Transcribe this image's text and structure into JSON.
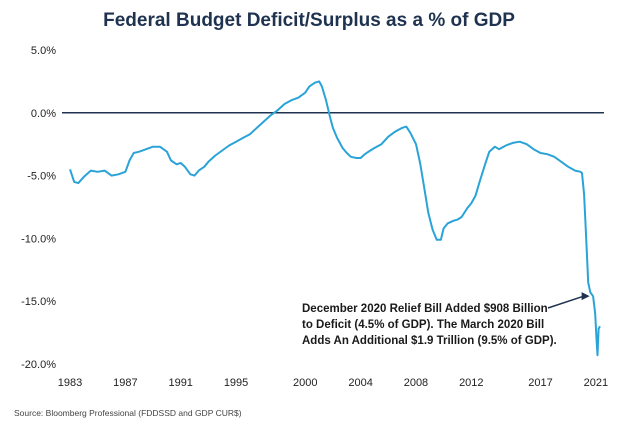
{
  "title": "Federal Budget Deficit/Surplus as a % of GDP",
  "source": "Source: Bloomberg Professional (FDDSSD and GDP CUR$)",
  "annotation": {
    "line1": "December 2020 Relief Bill Added $908 Billion",
    "line2": "to Deficit (4.5% of GDP).  The March 2020 Bill",
    "line3": "Adds An Additional $1.9 Trillion (9.5% of GDP)."
  },
  "colors": {
    "line": "#2aa3d8",
    "zero_line": "#1f3350",
    "text": "#1a1a1a"
  },
  "chart_data": {
    "type": "line",
    "title": "Federal Budget Deficit/Surplus as a % of GDP",
    "xlabel": "",
    "ylabel": "",
    "grid": false,
    "ylim": [
      -20,
      5
    ],
    "xlim": [
      1983,
      2021.3
    ],
    "y_ticks": [
      5,
      0,
      -5,
      -10,
      -15,
      -20
    ],
    "y_tick_labels": [
      "5.0%",
      "0.0%",
      "-5.0%",
      "-10.0%",
      "-15.0%",
      "-20.0%"
    ],
    "x_ticks": [
      1983,
      1987,
      1991,
      1995,
      2000,
      2004,
      2008,
      2012,
      2017,
      2021
    ],
    "x_tick_labels": [
      "1983",
      "1987",
      "1991",
      "1995",
      "2000",
      "2004",
      "2008",
      "2012",
      "2017",
      "2021"
    ],
    "series": [
      {
        "points": [
          [
            1983.0,
            -4.5
          ],
          [
            1983.3,
            -5.5
          ],
          [
            1983.6,
            -5.6
          ],
          [
            1984.0,
            -5.1
          ],
          [
            1984.5,
            -4.6
          ],
          [
            1985.0,
            -4.7
          ],
          [
            1985.5,
            -4.6
          ],
          [
            1986.0,
            -5.0
          ],
          [
            1986.5,
            -4.9
          ],
          [
            1987.0,
            -4.7
          ],
          [
            1987.3,
            -3.8
          ],
          [
            1987.6,
            -3.2
          ],
          [
            1988.0,
            -3.1
          ],
          [
            1988.5,
            -2.9
          ],
          [
            1989.0,
            -2.7
          ],
          [
            1989.5,
            -2.7
          ],
          [
            1990.0,
            -3.1
          ],
          [
            1990.3,
            -3.8
          ],
          [
            1990.7,
            -4.1
          ],
          [
            1991.0,
            -4.0
          ],
          [
            1991.3,
            -4.3
          ],
          [
            1991.7,
            -4.9
          ],
          [
            1992.0,
            -5.0
          ],
          [
            1992.3,
            -4.6
          ],
          [
            1992.7,
            -4.3
          ],
          [
            1993.0,
            -3.9
          ],
          [
            1993.5,
            -3.4
          ],
          [
            1994.0,
            -3.0
          ],
          [
            1994.5,
            -2.6
          ],
          [
            1995.0,
            -2.3
          ],
          [
            1995.5,
            -2.0
          ],
          [
            1996.0,
            -1.7
          ],
          [
            1996.5,
            -1.2
          ],
          [
            1997.0,
            -0.7
          ],
          [
            1997.5,
            -0.2
          ],
          [
            1998.0,
            0.2
          ],
          [
            1998.5,
            0.7
          ],
          [
            1999.0,
            1.0
          ],
          [
            1999.5,
            1.2
          ],
          [
            2000.0,
            1.6
          ],
          [
            2000.3,
            2.1
          ],
          [
            2000.7,
            2.4
          ],
          [
            2001.0,
            2.5
          ],
          [
            2001.2,
            2.1
          ],
          [
            2001.5,
            1.0
          ],
          [
            2001.8,
            -0.4
          ],
          [
            2002.0,
            -1.2
          ],
          [
            2002.3,
            -2.0
          ],
          [
            2002.7,
            -2.8
          ],
          [
            2003.0,
            -3.2
          ],
          [
            2003.3,
            -3.5
          ],
          [
            2003.7,
            -3.6
          ],
          [
            2004.0,
            -3.6
          ],
          [
            2004.3,
            -3.3
          ],
          [
            2004.7,
            -3.0
          ],
          [
            2005.0,
            -2.8
          ],
          [
            2005.5,
            -2.5
          ],
          [
            2006.0,
            -1.9
          ],
          [
            2006.5,
            -1.5
          ],
          [
            2007.0,
            -1.2
          ],
          [
            2007.3,
            -1.1
          ],
          [
            2007.6,
            -1.6
          ],
          [
            2008.0,
            -2.5
          ],
          [
            2008.3,
            -4.0
          ],
          [
            2008.6,
            -6.0
          ],
          [
            2008.9,
            -8.0
          ],
          [
            2009.2,
            -9.3
          ],
          [
            2009.5,
            -10.1
          ],
          [
            2009.8,
            -10.1
          ],
          [
            2010.0,
            -9.2
          ],
          [
            2010.3,
            -8.8
          ],
          [
            2010.7,
            -8.6
          ],
          [
            2011.0,
            -8.5
          ],
          [
            2011.3,
            -8.3
          ],
          [
            2011.7,
            -7.6
          ],
          [
            2012.0,
            -7.2
          ],
          [
            2012.3,
            -6.6
          ],
          [
            2012.6,
            -5.5
          ],
          [
            2013.0,
            -4.1
          ],
          [
            2013.3,
            -3.1
          ],
          [
            2013.7,
            -2.7
          ],
          [
            2014.0,
            -2.9
          ],
          [
            2014.5,
            -2.6
          ],
          [
            2015.0,
            -2.4
          ],
          [
            2015.5,
            -2.3
          ],
          [
            2016.0,
            -2.5
          ],
          [
            2016.5,
            -2.9
          ],
          [
            2017.0,
            -3.2
          ],
          [
            2017.5,
            -3.3
          ],
          [
            2018.0,
            -3.5
          ],
          [
            2018.5,
            -3.9
          ],
          [
            2019.0,
            -4.3
          ],
          [
            2019.5,
            -4.6
          ],
          [
            2019.9,
            -4.7
          ],
          [
            2020.0,
            -4.8
          ],
          [
            2020.15,
            -6.5
          ],
          [
            2020.3,
            -10.0
          ],
          [
            2020.45,
            -13.5
          ],
          [
            2020.6,
            -14.3
          ],
          [
            2020.8,
            -14.6
          ],
          [
            2020.95,
            -16.0
          ],
          [
            2021.05,
            -18.0
          ],
          [
            2021.12,
            -19.3
          ],
          [
            2021.2,
            -17.2
          ],
          [
            2021.3,
            -17.0
          ]
        ]
      }
    ]
  }
}
